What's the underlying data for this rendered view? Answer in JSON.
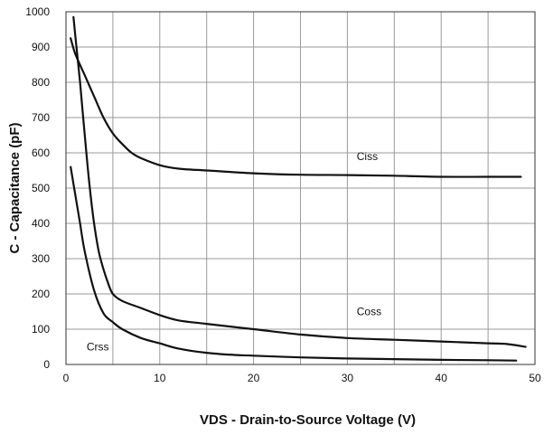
{
  "chart_data": {
    "type": "line",
    "title": "",
    "xlabel": "VDS - Drain-to-Source Voltage (V)",
    "ylabel": "C - Capacitance (pF)",
    "xlim": [
      0,
      50
    ],
    "ylim": [
      0,
      1000
    ],
    "x_ticks": [
      "0",
      "10",
      "20",
      "30",
      "40",
      "50"
    ],
    "y_ticks": [
      "0",
      "100",
      "200",
      "300",
      "400",
      "500",
      "600",
      "700",
      "800",
      "900",
      "1000"
    ],
    "x_grid_step": 5,
    "y_grid_step": 100,
    "grid": true,
    "legend": "none",
    "line_color": "#111111",
    "series": [
      {
        "name": "Ciss",
        "label_at": [
          31,
          580
        ],
        "points": [
          [
            0.5,
            925
          ],
          [
            1,
            880
          ],
          [
            2,
            820
          ],
          [
            3,
            760
          ],
          [
            4,
            700
          ],
          [
            5,
            655
          ],
          [
            6,
            625
          ],
          [
            7,
            600
          ],
          [
            8,
            585
          ],
          [
            10,
            565
          ],
          [
            12,
            555
          ],
          [
            15,
            550
          ],
          [
            20,
            542
          ],
          [
            25,
            538
          ],
          [
            30,
            537
          ],
          [
            35,
            535
          ],
          [
            40,
            532
          ],
          [
            45,
            532
          ],
          [
            48.5,
            532
          ]
        ]
      },
      {
        "name": "Coss",
        "label_at": [
          31,
          140
        ],
        "points": [
          [
            0.8,
            985
          ],
          [
            1,
            930
          ],
          [
            1.5,
            800
          ],
          [
            2,
            650
          ],
          [
            2.5,
            510
          ],
          [
            3,
            400
          ],
          [
            3.5,
            320
          ],
          [
            4,
            270
          ],
          [
            4.5,
            230
          ],
          [
            5,
            200
          ],
          [
            6,
            180
          ],
          [
            8,
            160
          ],
          [
            10,
            140
          ],
          [
            12,
            125
          ],
          [
            15,
            115
          ],
          [
            20,
            100
          ],
          [
            25,
            85
          ],
          [
            30,
            75
          ],
          [
            35,
            70
          ],
          [
            40,
            65
          ],
          [
            45,
            60
          ],
          [
            47,
            58
          ],
          [
            49,
            50
          ]
        ]
      },
      {
        "name": "Crss",
        "label_at": [
          2.2,
          40
        ],
        "points": [
          [
            0.5,
            560
          ],
          [
            1,
            480
          ],
          [
            1.5,
            400
          ],
          [
            2,
            320
          ],
          [
            3,
            210
          ],
          [
            4,
            145
          ],
          [
            5,
            120
          ],
          [
            6,
            100
          ],
          [
            8,
            75
          ],
          [
            10,
            60
          ],
          [
            12,
            45
          ],
          [
            15,
            33
          ],
          [
            18,
            27
          ],
          [
            20,
            25
          ],
          [
            25,
            20
          ],
          [
            30,
            17
          ],
          [
            35,
            15
          ],
          [
            40,
            13
          ],
          [
            45,
            12
          ],
          [
            48,
            11
          ]
        ]
      }
    ]
  }
}
